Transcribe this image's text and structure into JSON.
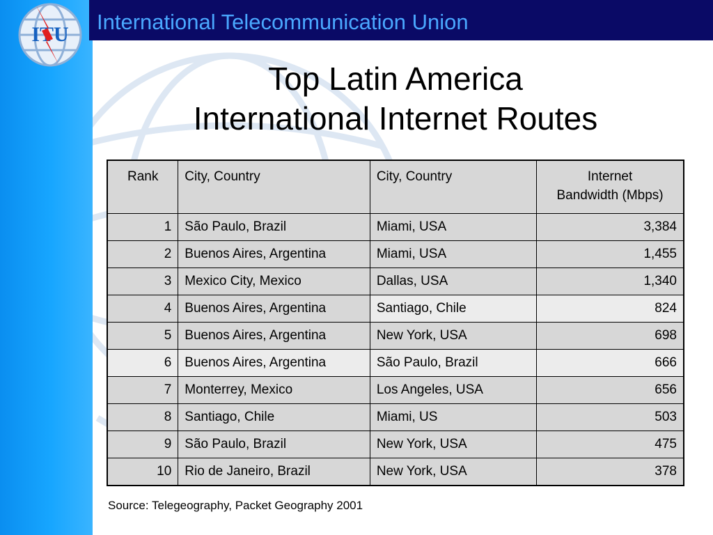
{
  "header": {
    "org_name": "International Telecommunication Union"
  },
  "logo": {
    "text": "ITU"
  },
  "slide": {
    "title_line1": "Top Latin America",
    "title_line2": "International Internet Routes"
  },
  "table": {
    "headers": {
      "rank": "Rank",
      "city1": "City, Country",
      "city2": "City, Country",
      "bandwidth_line1": "Internet",
      "bandwidth_line2": "Bandwidth (Mbps)"
    },
    "rows": [
      {
        "rank": "1",
        "city1": "São Paulo, Brazil",
        "city2": "Miami, USA",
        "bandwidth": "3,384"
      },
      {
        "rank": "2",
        "city1": "Buenos Aires, Argentina",
        "city2": "Miami, USA",
        "bandwidth": "1,455"
      },
      {
        "rank": "3",
        "city1": "Mexico City, Mexico",
        "city2": "Dallas, USA",
        "bandwidth": "1,340"
      },
      {
        "rank": "4",
        "city1": "Buenos Aires, Argentina",
        "city2": "Santiago, Chile",
        "bandwidth": "824"
      },
      {
        "rank": "5",
        "city1": "Buenos Aires, Argentina",
        "city2": "New York, USA",
        "bandwidth": "698"
      },
      {
        "rank": "6",
        "city1": "Buenos Aires, Argentina",
        "city2": "São Paulo, Brazil",
        "bandwidth": "666"
      },
      {
        "rank": "7",
        "city1": "Monterrey, Mexico",
        "city2": "Los Angeles, USA",
        "bandwidth": "656"
      },
      {
        "rank": "8",
        "city1": "Santiago, Chile",
        "city2": "Miami, US",
        "bandwidth": "503"
      },
      {
        "rank": "9",
        "city1": "São Paulo, Brazil",
        "city2": "New York, USA",
        "bandwidth": "475"
      },
      {
        "rank": "10",
        "city1": "Rio de Janeiro, Brazil",
        "city2": "New York, USA",
        "bandwidth": "378"
      }
    ]
  },
  "source": "Source: Telegeography, Packet Geography 2001",
  "colors": {
    "header_bar": "#0a0a66",
    "header_text": "#4aa8ff",
    "left_band": "#17a6ff",
    "row_dark": "#d7d7d7",
    "row_light": "#ececec"
  }
}
